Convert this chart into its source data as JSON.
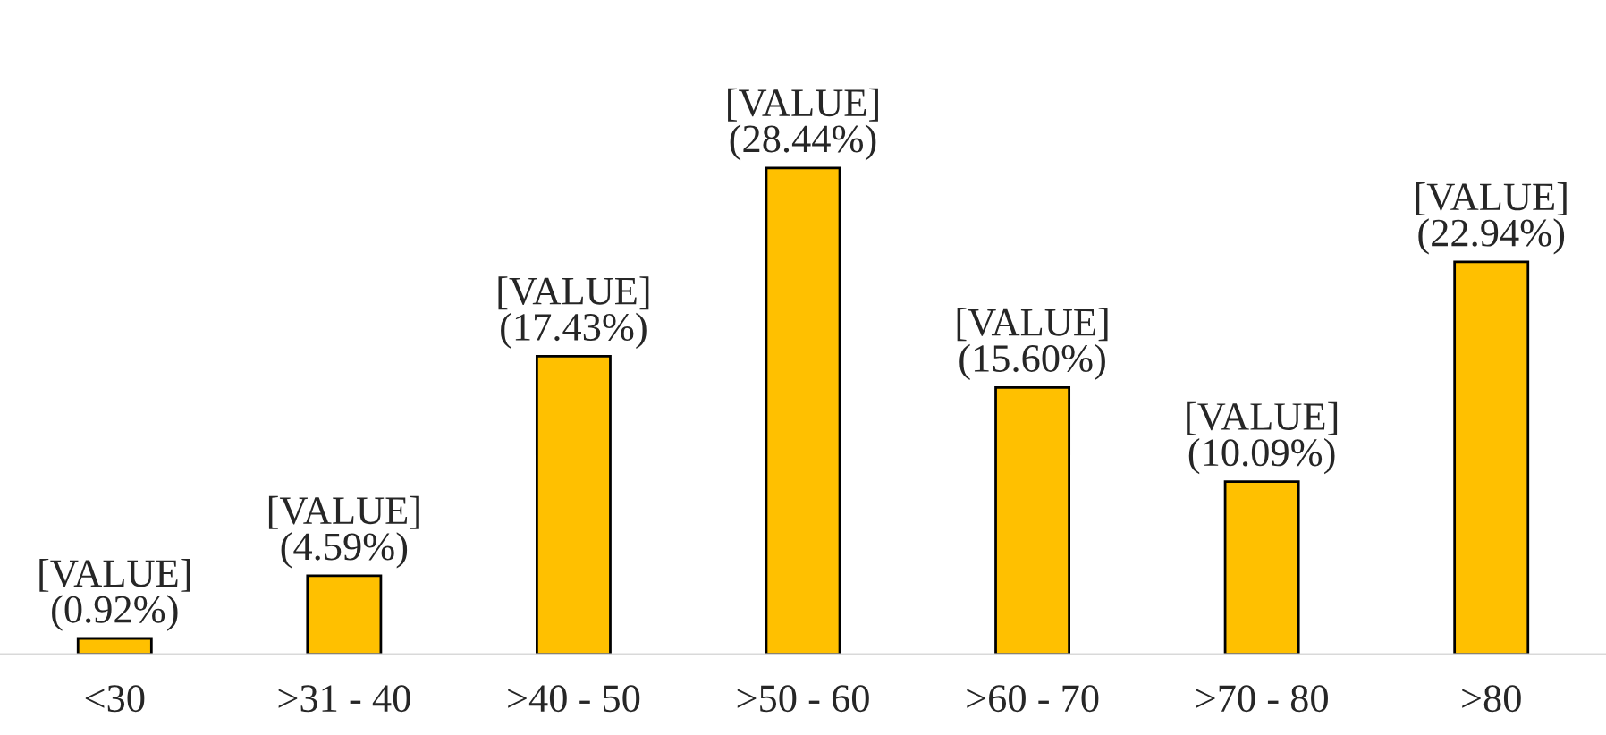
{
  "chart_data": {
    "type": "bar",
    "categories": [
      "<30",
      ">31 - 40",
      ">40 - 50",
      ">50 - 60",
      ">60 - 70",
      ">70 - 80",
      ">80"
    ],
    "values": [
      0.92,
      4.59,
      17.43,
      28.44,
      15.6,
      10.09,
      22.94
    ],
    "value_labels": [
      "[VALUE]\n(0.92%)",
      "[VALUE]\n(4.59%)",
      "[VALUE]\n(17.43%)",
      "[VALUE]\n(28.44%)",
      "[VALUE]\n(15.60%)",
      "[VALUE]\n(10.09%)",
      "[VALUE]\n(22.94%)"
    ],
    "color": "#ffc000",
    "grid": false,
    "legend": false
  }
}
